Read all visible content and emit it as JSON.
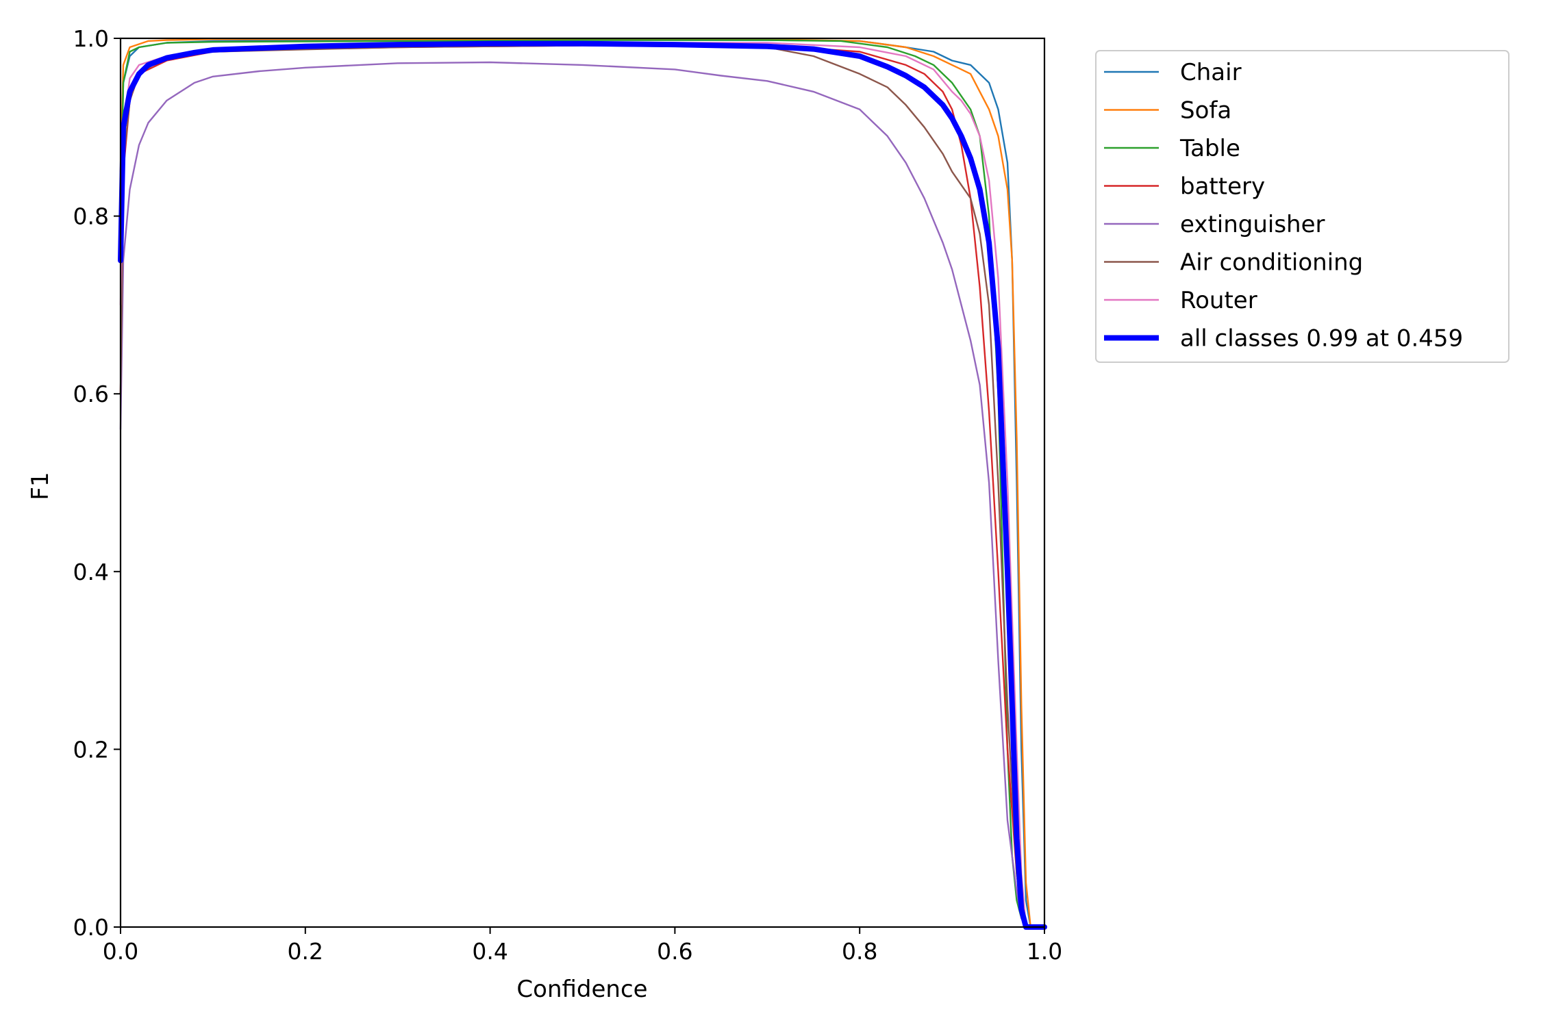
{
  "chart_data": {
    "type": "line",
    "xlabel": "Confidence",
    "ylabel": "F1",
    "xlim": [
      0,
      1
    ],
    "ylim": [
      0,
      1
    ],
    "xticks": [
      "0.0",
      "0.2",
      "0.4",
      "0.6",
      "0.8",
      "1.0"
    ],
    "yticks": [
      "0.0",
      "0.2",
      "0.4",
      "0.6",
      "0.8",
      "1.0"
    ],
    "grid": false,
    "legend_position": "outside-top-right",
    "series": [
      {
        "name": "Chair",
        "color": "#1f77b4",
        "x": [
          0,
          0.003,
          0.01,
          0.02,
          0.05,
          0.1,
          0.3,
          0.5,
          0.7,
          0.8,
          0.85,
          0.88,
          0.9,
          0.92,
          0.93,
          0.94,
          0.95,
          0.96,
          0.965,
          0.97,
          0.975,
          0.98,
          0.985,
          0.99,
          1.0
        ],
        "y": [
          0.8,
          0.95,
          0.98,
          0.99,
          0.995,
          0.997,
          0.998,
          0.998,
          0.998,
          0.997,
          0.99,
          0.985,
          0.975,
          0.97,
          0.96,
          0.95,
          0.92,
          0.86,
          0.75,
          0.5,
          0.2,
          0.03,
          0.0,
          0.0,
          0.0
        ]
      },
      {
        "name": "Sofa",
        "color": "#ff7f0e",
        "x": [
          0,
          0.003,
          0.01,
          0.03,
          0.05,
          0.1,
          0.3,
          0.5,
          0.7,
          0.8,
          0.85,
          0.88,
          0.9,
          0.92,
          0.93,
          0.94,
          0.95,
          0.96,
          0.965,
          0.97,
          0.975,
          0.98,
          0.985,
          0.99,
          1.0
        ],
        "y": [
          0.85,
          0.97,
          0.99,
          0.997,
          0.998,
          0.999,
          0.999,
          0.999,
          0.999,
          0.997,
          0.99,
          0.98,
          0.97,
          0.96,
          0.94,
          0.92,
          0.89,
          0.83,
          0.75,
          0.55,
          0.25,
          0.05,
          0.0,
          0.0,
          0.0
        ]
      },
      {
        "name": "Table",
        "color": "#2ca02c",
        "x": [
          0,
          0.003,
          0.01,
          0.02,
          0.05,
          0.1,
          0.3,
          0.5,
          0.7,
          0.78,
          0.83,
          0.86,
          0.88,
          0.9,
          0.92,
          0.93,
          0.94,
          0.95,
          0.955,
          0.96,
          0.965,
          0.97,
          0.975,
          0.98,
          1.0
        ],
        "y": [
          0.8,
          0.95,
          0.985,
          0.99,
          0.995,
          0.996,
          0.997,
          0.998,
          0.998,
          0.997,
          0.99,
          0.98,
          0.97,
          0.95,
          0.92,
          0.89,
          0.8,
          0.6,
          0.4,
          0.2,
          0.08,
          0.03,
          0.01,
          0.0,
          0.0
        ]
      },
      {
        "name": "battery",
        "color": "#d62728",
        "x": [
          0,
          0.003,
          0.01,
          0.02,
          0.05,
          0.1,
          0.2,
          0.3,
          0.5,
          0.7,
          0.8,
          0.85,
          0.87,
          0.89,
          0.9,
          0.91,
          0.92,
          0.93,
          0.94,
          0.95,
          0.96,
          0.97,
          0.975,
          0.98,
          1.0
        ],
        "y": [
          0.6,
          0.85,
          0.93,
          0.96,
          0.975,
          0.985,
          0.988,
          0.99,
          0.992,
          0.992,
          0.985,
          0.97,
          0.96,
          0.94,
          0.92,
          0.88,
          0.82,
          0.72,
          0.58,
          0.4,
          0.2,
          0.06,
          0.02,
          0.0,
          0.0
        ]
      },
      {
        "name": "extinguisher",
        "color": "#9467bd",
        "x": [
          0,
          0.003,
          0.01,
          0.02,
          0.03,
          0.05,
          0.08,
          0.1,
          0.15,
          0.2,
          0.3,
          0.4,
          0.5,
          0.6,
          0.65,
          0.7,
          0.75,
          0.8,
          0.83,
          0.85,
          0.87,
          0.89,
          0.9,
          0.91,
          0.92,
          0.93,
          0.94,
          0.95,
          0.96,
          0.97,
          0.975,
          0.98,
          1.0
        ],
        "y": [
          0.56,
          0.75,
          0.83,
          0.88,
          0.905,
          0.93,
          0.95,
          0.957,
          0.963,
          0.967,
          0.972,
          0.973,
          0.97,
          0.965,
          0.958,
          0.952,
          0.94,
          0.92,
          0.89,
          0.86,
          0.82,
          0.77,
          0.74,
          0.7,
          0.66,
          0.61,
          0.5,
          0.3,
          0.12,
          0.04,
          0.01,
          0.0,
          0.0
        ]
      },
      {
        "name": "Air conditioning",
        "color": "#8c564b",
        "x": [
          0,
          0.003,
          0.01,
          0.02,
          0.05,
          0.1,
          0.3,
          0.5,
          0.7,
          0.75,
          0.8,
          0.83,
          0.85,
          0.87,
          0.89,
          0.9,
          0.91,
          0.92,
          0.93,
          0.94,
          0.95,
          0.96,
          0.97,
          0.975,
          0.98,
          1.0
        ],
        "y": [
          0.6,
          0.86,
          0.93,
          0.96,
          0.98,
          0.985,
          0.99,
          0.992,
          0.99,
          0.98,
          0.96,
          0.945,
          0.925,
          0.9,
          0.87,
          0.85,
          0.835,
          0.82,
          0.78,
          0.7,
          0.5,
          0.25,
          0.06,
          0.02,
          0.0,
          0.0
        ]
      },
      {
        "name": "Router",
        "color": "#e377c2",
        "x": [
          0,
          0.003,
          0.01,
          0.02,
          0.05,
          0.1,
          0.3,
          0.5,
          0.7,
          0.8,
          0.85,
          0.88,
          0.9,
          0.91,
          0.92,
          0.93,
          0.94,
          0.95,
          0.96,
          0.97,
          0.975,
          0.98,
          1.0
        ],
        "y": [
          0.7,
          0.9,
          0.955,
          0.97,
          0.98,
          0.987,
          0.993,
          0.995,
          0.995,
          0.99,
          0.98,
          0.965,
          0.94,
          0.93,
          0.915,
          0.89,
          0.84,
          0.73,
          0.5,
          0.2,
          0.06,
          0.0,
          0.0
        ]
      },
      {
        "name": "all classes 0.99 at 0.459",
        "color": "#0000ff",
        "x": [
          0,
          0.003,
          0.01,
          0.02,
          0.03,
          0.05,
          0.08,
          0.1,
          0.15,
          0.2,
          0.3,
          0.4,
          0.459,
          0.5,
          0.6,
          0.7,
          0.75,
          0.8,
          0.83,
          0.85,
          0.87,
          0.89,
          0.9,
          0.91,
          0.92,
          0.93,
          0.94,
          0.95,
          0.96,
          0.965,
          0.97,
          0.975,
          0.98,
          0.985,
          1.0
        ],
        "y": [
          0.75,
          0.9,
          0.94,
          0.96,
          0.97,
          0.978,
          0.984,
          0.987,
          0.989,
          0.991,
          0.993,
          0.994,
          0.994,
          0.994,
          0.993,
          0.991,
          0.988,
          0.98,
          0.968,
          0.958,
          0.945,
          0.925,
          0.91,
          0.89,
          0.865,
          0.83,
          0.77,
          0.65,
          0.4,
          0.25,
          0.1,
          0.02,
          0.0,
          0.0,
          0.0
        ]
      }
    ]
  }
}
